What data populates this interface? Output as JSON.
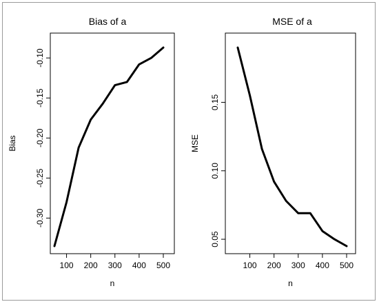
{
  "chart_data": [
    {
      "type": "line",
      "title": "Bias of  a",
      "xlabel": "n",
      "ylabel": "Bias",
      "x": [
        50,
        100,
        150,
        200,
        250,
        300,
        350,
        400,
        450,
        500
      ],
      "series": [
        {
          "values": [
            -0.335,
            -0.28,
            -0.212,
            -0.177,
            -0.157,
            -0.134,
            -0.13,
            -0.108,
            -0.1,
            -0.087
          ]
        }
      ],
      "xlim": [
        50,
        500
      ],
      "ylim": [
        -0.335,
        -0.087
      ],
      "xticks": [
        100,
        200,
        300,
        400,
        500
      ],
      "yticks": [
        -0.3,
        -0.25,
        -0.2,
        -0.15,
        -0.1
      ],
      "xtick_labels": [
        "100",
        "200",
        "300",
        "400",
        "500"
      ],
      "ytick_labels": [
        "-0.30",
        "-0.25",
        "-0.20",
        "-0.15",
        "-0.10"
      ],
      "grid": false,
      "line_color": "#000000"
    },
    {
      "type": "line",
      "title": "MSE of  a",
      "xlabel": "n",
      "ylabel": "MSE",
      "x": [
        50,
        100,
        150,
        200,
        250,
        300,
        350,
        400,
        450,
        500
      ],
      "series": [
        {
          "values": [
            0.19,
            0.155,
            0.116,
            0.092,
            0.078,
            0.069,
            0.069,
            0.056,
            0.05,
            0.045
          ]
        }
      ],
      "xlim": [
        50,
        500
      ],
      "ylim": [
        0.045,
        0.19
      ],
      "xticks": [
        100,
        200,
        300,
        400,
        500
      ],
      "yticks": [
        0.05,
        0.1,
        0.15
      ],
      "xtick_labels": [
        "100",
        "200",
        "300",
        "400",
        "500"
      ],
      "ytick_labels": [
        "0.05",
        "0.10",
        "0.15"
      ],
      "grid": false,
      "line_color": "#000000"
    }
  ]
}
